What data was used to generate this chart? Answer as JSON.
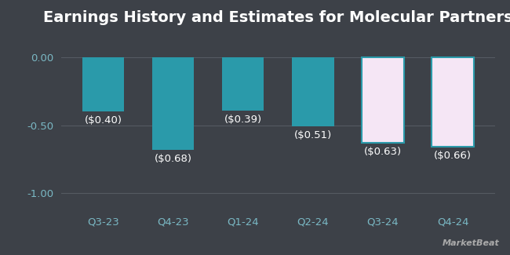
{
  "title": "Earnings History and Estimates for Molecular Partners",
  "categories": [
    "Q3-23",
    "Q4-23",
    "Q1-24",
    "Q2-24",
    "Q3-24",
    "Q4-24"
  ],
  "values": [
    -0.4,
    -0.68,
    -0.39,
    -0.51,
    -0.63,
    -0.66
  ],
  "labels": [
    "($0.40)",
    "($0.68)",
    "($0.39)",
    "($0.51)",
    "($0.63)",
    "($0.66)"
  ],
  "bar_facecolors": [
    "#2a9aaa",
    "#2a9aaa",
    "#2a9aaa",
    "#2a9aaa",
    "#f5e6f5",
    "#f5e6f5"
  ],
  "bar_edgecolors": [
    "none",
    "none",
    "none",
    "none",
    "#2a9aaa",
    "#2a9aaa"
  ],
  "is_estimate": [
    false,
    false,
    false,
    false,
    true,
    true
  ],
  "background_color": "#3d4148",
  "text_color": "#ffffff",
  "axis_label_color": "#7ab8c4",
  "grid_color": "#555a62",
  "ylim": [
    -1.12,
    0.18
  ],
  "yticks": [
    0.0,
    -0.5,
    -1.0
  ],
  "ytick_labels": [
    "0.00",
    "-0.50",
    "-1.00"
  ],
  "title_fontsize": 14,
  "label_fontsize": 9.5,
  "tick_fontsize": 9.5,
  "bar_width": 0.6
}
